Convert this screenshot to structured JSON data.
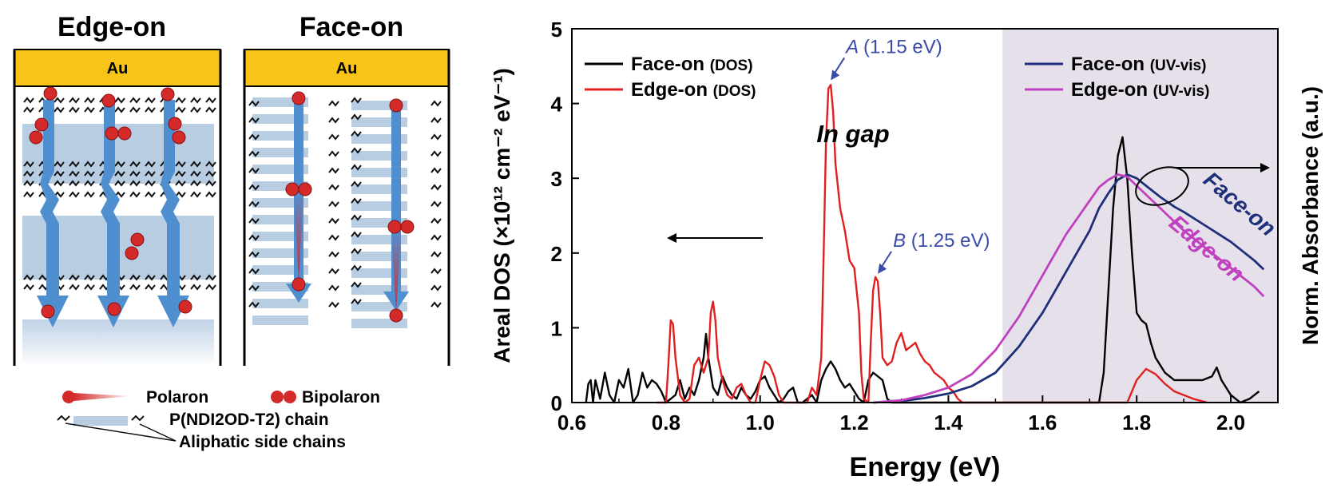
{
  "schematic": {
    "edge_title": "Edge-on",
    "face_title": "Face-on",
    "electrode_label": "Au",
    "legend": {
      "polaron": "Polaron",
      "bipolaron": "Bipolaron",
      "chain": "P(NDI2OD-T2) chain",
      "side_chains": "Aliphatic side chains"
    },
    "colors": {
      "gold": "#f7c417",
      "chain": "#b8cde2",
      "arrow": "#4f8fd0",
      "charge": "#d42a2a"
    }
  },
  "chart_data": {
    "type": "line",
    "xlabel": "Energy (eV)",
    "ylabel": "Areal DOS (×10¹² cm⁻² eV⁻¹)",
    "y2label": "Norm. Absorbance (a.u.)",
    "xlim": [
      0.6,
      2.1
    ],
    "ylim": [
      0,
      5
    ],
    "xticks": [
      "0.6",
      "0.8",
      "1.0",
      "1.2",
      "1.4",
      "1.6",
      "1.8",
      "2.0"
    ],
    "yticks": [
      "0",
      "1",
      "2",
      "3",
      "4",
      "5"
    ],
    "shaded_region": {
      "from": 1.515,
      "to": 2.1,
      "color": "#e6e0eb"
    },
    "gap_label": "In gap",
    "peaks": [
      {
        "letter": "A",
        "energy": "(1.15 eV)",
        "x": 1.145,
        "y": 4.27
      },
      {
        "letter": "B",
        "energy": "(1.25 eV)",
        "x": 1.245,
        "y": 1.68
      }
    ],
    "legend_left": [
      {
        "name": "Face-on",
        "tag": "(DOS)",
        "color": "#000000"
      },
      {
        "name": "Edge-on",
        "tag": "(DOS)",
        "color": "#e02020"
      }
    ],
    "legend_right": [
      {
        "name": "Face-on",
        "tag": "(UV-vis)",
        "color": "#1f2f7a"
      },
      {
        "name": "Edge-on",
        "tag": "(UV-vis)",
        "color": "#c040c0"
      }
    ],
    "curve_labels": {
      "face": "Face-on",
      "edge": "Edge-on"
    },
    "series": [
      {
        "name": "Face-on (DOS)",
        "color": "#000000",
        "x": [
          0.63,
          0.635,
          0.64,
          0.645,
          0.65,
          0.66,
          0.67,
          0.68,
          0.69,
          0.7,
          0.71,
          0.72,
          0.73,
          0.74,
          0.75,
          0.76,
          0.77,
          0.78,
          0.79,
          0.8,
          0.81,
          0.82,
          0.83,
          0.84,
          0.85,
          0.86,
          0.87,
          0.88,
          0.885,
          0.89,
          0.9,
          0.91,
          0.92,
          0.93,
          0.94,
          0.95,
          0.96,
          0.97,
          0.98,
          0.99,
          1.0,
          1.01,
          1.02,
          1.03,
          1.04,
          1.05,
          1.06,
          1.07,
          1.08,
          1.09,
          1.1,
          1.11,
          1.12,
          1.13,
          1.14,
          1.15,
          1.16,
          1.17,
          1.18,
          1.19,
          1.2,
          1.21,
          1.22,
          1.23,
          1.24,
          1.25,
          1.26,
          1.27,
          1.28,
          1.3,
          1.35,
          1.4,
          1.45,
          1.5,
          1.55,
          1.6,
          1.65,
          1.7,
          1.72,
          1.73,
          1.74,
          1.75,
          1.76,
          1.77,
          1.78,
          1.79,
          1.8,
          1.81,
          1.82,
          1.83,
          1.84,
          1.86,
          1.88,
          1.9,
          1.92,
          1.94,
          1.96,
          1.97,
          1.98,
          2.0,
          2.02,
          2.04,
          2.06
        ],
        "y": [
          0,
          0.25,
          0.3,
          0,
          0.3,
          0.05,
          0.4,
          0.1,
          0,
          0.3,
          0.2,
          0.45,
          0,
          0.1,
          0.4,
          0.2,
          0.3,
          0.25,
          0.15,
          0,
          0.05,
          0.1,
          0.3,
          0.05,
          0.2,
          0.1,
          0.3,
          0.6,
          0.92,
          0.6,
          0.2,
          0.1,
          0.35,
          0.2,
          0.1,
          0.05,
          0.2,
          0.1,
          0.05,
          0.15,
          0.3,
          0.35,
          0.2,
          0.1,
          0,
          0.05,
          0.15,
          0.2,
          0,
          0,
          0.05,
          0.1,
          0,
          0.3,
          0.45,
          0.55,
          0.45,
          0.3,
          0.2,
          0.25,
          0.15,
          0.05,
          0,
          0.3,
          0.4,
          0.35,
          0.3,
          0.05,
          0,
          0,
          0,
          0,
          0,
          0,
          0,
          0,
          0,
          0,
          0,
          0.4,
          1.5,
          2.6,
          3.3,
          3.55,
          3.0,
          2.0,
          1.2,
          1.1,
          1.05,
          0.8,
          0.6,
          0.4,
          0.3,
          0.3,
          0.3,
          0.3,
          0.35,
          0.47,
          0.3,
          0.1,
          0,
          0.05,
          0.15
        ]
      },
      {
        "name": "Edge-on (DOS)",
        "color": "#e02020",
        "x": [
          0.78,
          0.8,
          0.805,
          0.81,
          0.815,
          0.82,
          0.83,
          0.84,
          0.85,
          0.86,
          0.87,
          0.88,
          0.89,
          0.895,
          0.9,
          0.905,
          0.91,
          0.92,
          0.93,
          0.94,
          0.95,
          0.96,
          0.97,
          0.98,
          0.99,
          1.0,
          1.01,
          1.02,
          1.03,
          1.04,
          1.05,
          1.06,
          1.07,
          1.08,
          1.09,
          1.1,
          1.11,
          1.12,
          1.13,
          1.135,
          1.14,
          1.145,
          1.15,
          1.155,
          1.16,
          1.17,
          1.18,
          1.19,
          1.2,
          1.21,
          1.215,
          1.22,
          1.23,
          1.235,
          1.24,
          1.245,
          1.25,
          1.255,
          1.26,
          1.27,
          1.28,
          1.29,
          1.3,
          1.31,
          1.32,
          1.33,
          1.34,
          1.35,
          1.36,
          1.37,
          1.38,
          1.39,
          1.4,
          1.41,
          1.42,
          1.43,
          1.44,
          1.78,
          1.8,
          1.82,
          1.84,
          1.86,
          1.88,
          1.9,
          1.92,
          1.95
        ],
        "y": [
          0,
          0,
          0.5,
          1.1,
          1.05,
          0.6,
          0.1,
          0,
          0.05,
          0.5,
          0.6,
          0.4,
          0.6,
          1.2,
          1.35,
          1.1,
          0.6,
          0.3,
          0.1,
          0.05,
          0.2,
          0.25,
          0.1,
          0,
          0,
          0.3,
          0.55,
          0.5,
          0.35,
          0.1,
          0,
          0,
          0,
          0,
          0,
          0,
          0.2,
          0.1,
          0.6,
          2.0,
          3.5,
          4.2,
          4.25,
          3.9,
          3.2,
          2.6,
          2.3,
          1.9,
          1.8,
          1.2,
          0.4,
          0.05,
          0,
          0.8,
          1.5,
          1.68,
          1.62,
          1.2,
          0.6,
          0.5,
          0.55,
          0.8,
          0.93,
          0.7,
          0.75,
          0.8,
          0.65,
          0.55,
          0.5,
          0.4,
          0.35,
          0.3,
          0.2,
          0.15,
          0.05,
          0,
          0,
          0,
          0.3,
          0.45,
          0.38,
          0.25,
          0.15,
          0.1,
          0.05,
          0
        ]
      },
      {
        "name": "Face-on (UV-vis)",
        "color": "#1f2f7a",
        "x": [
          1.24,
          1.3,
          1.35,
          1.4,
          1.45,
          1.5,
          1.55,
          1.6,
          1.65,
          1.7,
          1.72,
          1.74,
          1.76,
          1.78,
          1.8,
          1.82,
          1.85,
          1.88,
          1.9,
          1.95,
          2.0,
          2.05,
          2.07
        ],
        "y": [
          0,
          0.02,
          0.06,
          0.12,
          0.22,
          0.4,
          0.75,
          1.2,
          1.75,
          2.3,
          2.6,
          2.8,
          2.98,
          3.05,
          3.0,
          2.9,
          2.75,
          2.62,
          2.55,
          2.35,
          2.15,
          1.9,
          1.78
        ]
      },
      {
        "name": "Edge-on (UV-vis)",
        "color": "#c040c0",
        "x": [
          1.24,
          1.3,
          1.35,
          1.4,
          1.45,
          1.5,
          1.55,
          1.6,
          1.65,
          1.7,
          1.72,
          1.74,
          1.76,
          1.78,
          1.8,
          1.85,
          1.9,
          1.95,
          2.0,
          2.05,
          2.07
        ],
        "y": [
          0,
          0.03,
          0.1,
          0.2,
          0.38,
          0.7,
          1.15,
          1.7,
          2.25,
          2.7,
          2.88,
          2.98,
          3.05,
          3.02,
          2.9,
          2.6,
          2.3,
          2.05,
          1.8,
          1.55,
          1.42
        ]
      }
    ]
  }
}
